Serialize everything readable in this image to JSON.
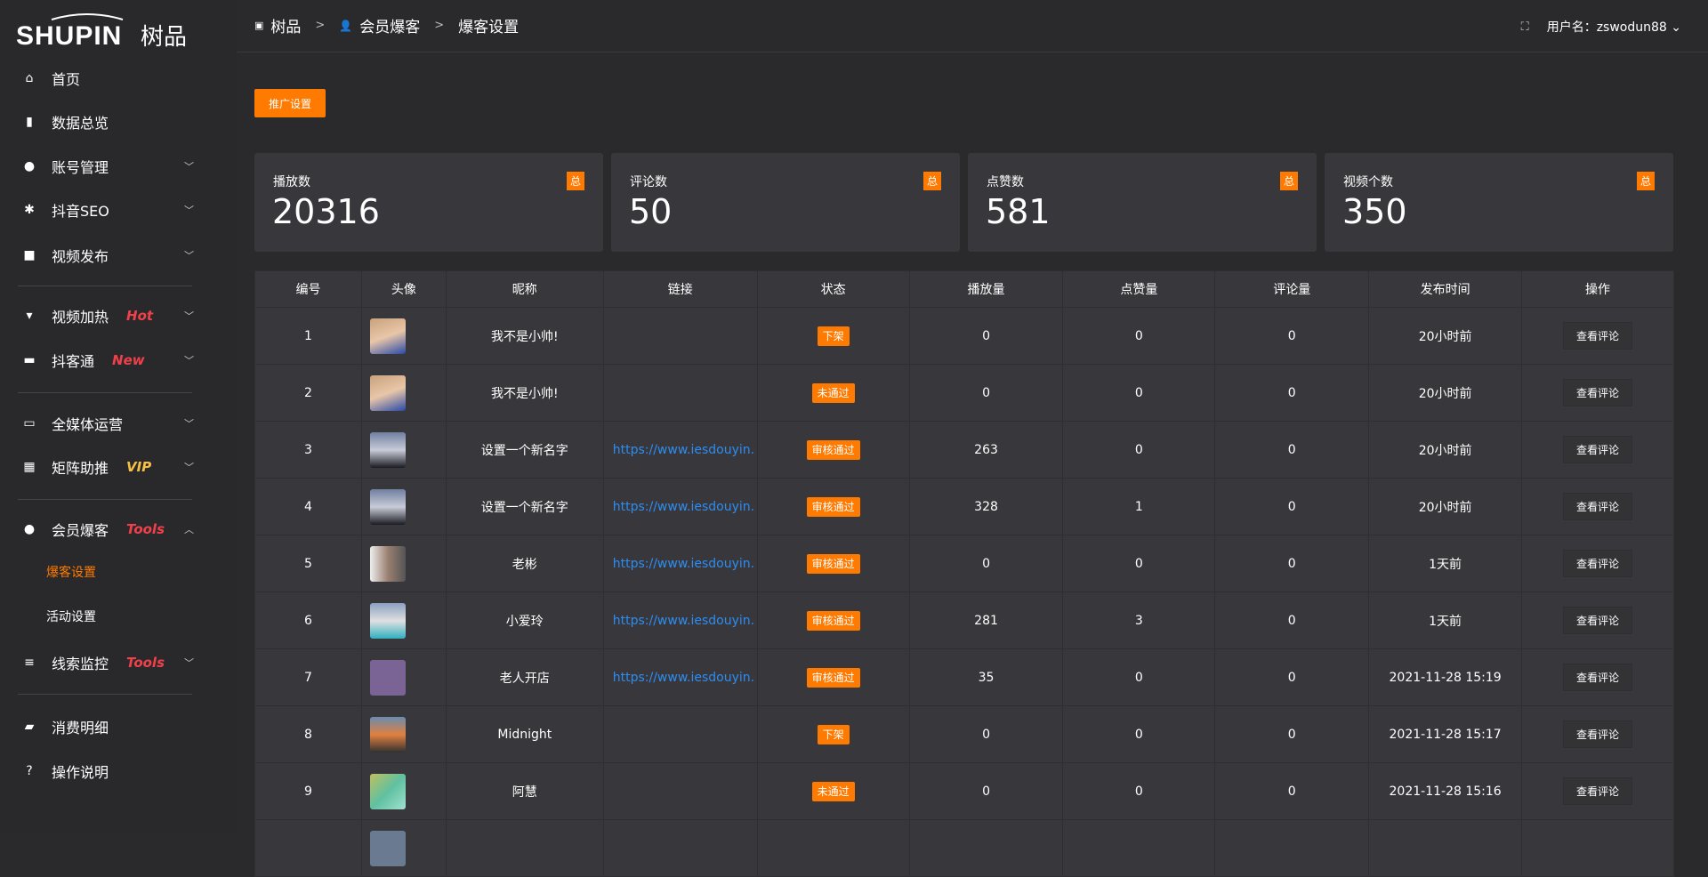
{
  "logo": {
    "text": "SHUPIN树品"
  },
  "sidebar": {
    "items": [
      {
        "label": "首页",
        "icon": "home-icon",
        "tag": ""
      },
      {
        "label": "数据总览",
        "icon": "bar-chart-icon",
        "tag": ""
      },
      {
        "label": "账号管理",
        "icon": "user-icon",
        "tag": ""
      },
      {
        "label": "抖音SEO",
        "icon": "gear-icon",
        "tag": ""
      },
      {
        "label": "视频发布",
        "icon": "video-camera-icon",
        "tag": ""
      },
      {
        "label": "视频加热",
        "icon": "flag-icon",
        "tag": "Hot"
      },
      {
        "label": "抖客通",
        "icon": "chat-icon",
        "tag": "New"
      },
      {
        "label": "全媒体运营",
        "icon": "monitor-icon",
        "tag": ""
      },
      {
        "label": "矩阵助推",
        "icon": "grid-icon",
        "tag": "VIP"
      },
      {
        "label": "会员爆客",
        "icon": "user-icon",
        "tag": "Tools"
      },
      {
        "label": "线索监控",
        "icon": "sliders-icon",
        "tag": "Tools"
      },
      {
        "label": "消费明细",
        "icon": "wallet-icon",
        "tag": ""
      },
      {
        "label": "操作说明",
        "icon": "question-icon",
        "tag": ""
      }
    ],
    "subitems": [
      {
        "label": "爆客设置",
        "active": true
      },
      {
        "label": "活动设置",
        "active": false
      }
    ]
  },
  "breadcrumb": [
    "树品",
    "会员爆客",
    "爆客设置"
  ],
  "header": {
    "user_label": "用户名：zswodun88"
  },
  "promo_button": "推广设置",
  "stats": [
    {
      "label": "播放数",
      "value": "20316",
      "badge": "总"
    },
    {
      "label": "评论数",
      "value": "50",
      "badge": "总"
    },
    {
      "label": "点赞数",
      "value": "581",
      "badge": "总"
    },
    {
      "label": "视频个数",
      "value": "350",
      "badge": "总"
    }
  ],
  "table": {
    "headers": [
      "编号",
      "头像",
      "昵称",
      "链接",
      "状态",
      "播放量",
      "点赞量",
      "评论量",
      "发布时间",
      "操作"
    ],
    "rows": [
      {
        "id": "1",
        "name": "我不是小帅!",
        "link": "",
        "status": "下架",
        "plays": "0",
        "likes": "0",
        "comments": "0",
        "time": "20小时前",
        "action": "查看评论"
      },
      {
        "id": "2",
        "name": "我不是小帅!",
        "link": "",
        "status": "未通过",
        "plays": "0",
        "likes": "0",
        "comments": "0",
        "time": "20小时前",
        "action": "查看评论"
      },
      {
        "id": "3",
        "name": "设置一个新名字",
        "link": "https://www.iesdouyin.c",
        "status": "审核通过",
        "plays": "263",
        "likes": "0",
        "comments": "0",
        "time": "20小时前",
        "action": "查看评论"
      },
      {
        "id": "4",
        "name": "设置一个新名字",
        "link": "https://www.iesdouyin.c",
        "status": "审核通过",
        "plays": "328",
        "likes": "1",
        "comments": "0",
        "time": "20小时前",
        "action": "查看评论"
      },
      {
        "id": "5",
        "name": "老彬",
        "link": "https://www.iesdouyin.c",
        "status": "审核通过",
        "plays": "0",
        "likes": "0",
        "comments": "0",
        "time": "1天前",
        "action": "查看评论"
      },
      {
        "id": "6",
        "name": "小爱玲",
        "link": "https://www.iesdouyin.c",
        "status": "审核通过",
        "plays": "281",
        "likes": "3",
        "comments": "0",
        "time": "1天前",
        "action": "查看评论"
      },
      {
        "id": "7",
        "name": "老人开店",
        "link": "https://www.iesdouyin.c",
        "status": "审核通过",
        "plays": "35",
        "likes": "0",
        "comments": "0",
        "time": "2021-11-28 15:19",
        "action": "查看评论"
      },
      {
        "id": "8",
        "name": "Midnight",
        "link": "",
        "status": "下架",
        "plays": "0",
        "likes": "0",
        "comments": "0",
        "time": "2021-11-28 15:17",
        "action": "查看评论"
      },
      {
        "id": "9",
        "name": "阿慧",
        "link": "",
        "status": "未通过",
        "plays": "0",
        "likes": "0",
        "comments": "0",
        "time": "2021-11-28 15:16",
        "action": "查看评论"
      }
    ]
  },
  "colors": {
    "accent": "#ff7a00",
    "link": "#2e8cf0",
    "tag_red": "#f0414a",
    "tag_vip": "#f5c043"
  }
}
